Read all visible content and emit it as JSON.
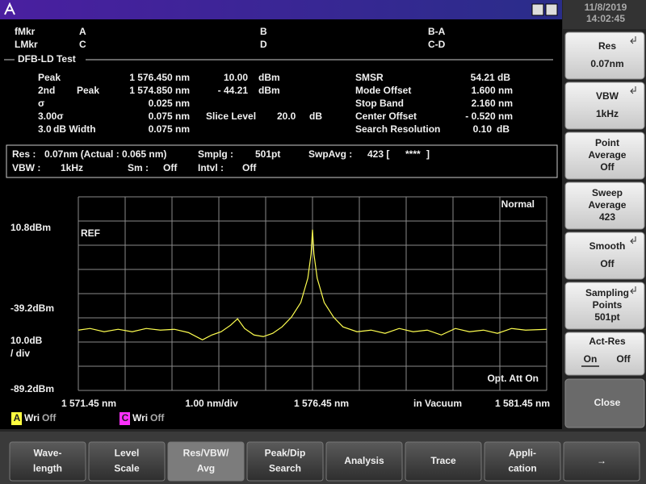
{
  "title_bar": {
    "date": "11/8/2019",
    "time": "14:02:45"
  },
  "markers": {
    "row1": [
      "fMkr",
      "A",
      "B",
      "B-A"
    ],
    "row2": [
      "LMkr",
      "C",
      "D",
      "C-D"
    ]
  },
  "test_name": "DFB-LD Test",
  "results": [
    [
      "Peak",
      "1 576.450 nm",
      "10.00",
      "dBm",
      "SMSR",
      "54.21 dB"
    ],
    [
      "2nd",
      "Peak",
      "1 574.850 nm",
      "- 44.21",
      "dBm",
      "Mode Offset",
      "1.600 nm"
    ],
    [
      "σ",
      "0.025 nm",
      "Stop Band",
      "2.160 nm"
    ],
    [
      "3.00σ",
      "0.075 nm",
      "Slice Level",
      "20.0",
      "dB",
      "Center Offset",
      "- 0.520 nm"
    ],
    [
      "3.0",
      "dB Width",
      "0.075 nm",
      "Search Resolution",
      "0.10",
      "dB"
    ]
  ],
  "settings": [
    [
      "Res :",
      "0.07nm (Actual :  0.065 nm)",
      "Smplg :",
      "501pt",
      "SwpAvg :",
      "423 [",
      "****",
      "]"
    ],
    [
      "VBW :",
      "1kHz",
      "Sm :",
      "Off",
      "Intvl :",
      "Off"
    ]
  ],
  "graph": {
    "mode": "Normal",
    "ref": "REF",
    "level_top": "10.8dBm",
    "level_mid": "-39.2dBm",
    "scale": "10.0dB",
    "scale_unit": "/ div",
    "level_bottom": "-89.2dBm",
    "att": "Opt. Att On",
    "x_labels": [
      "1 571.45 nm",
      "1.00 nm/div",
      "1 576.45 nm",
      "in Vacuum",
      "1 581.45 nm"
    ]
  },
  "trace_legend": [
    [
      "A",
      "Wri",
      "Off"
    ],
    [
      "C",
      "Wri",
      "Off"
    ]
  ],
  "trace": {
    "color": "#ffff50",
    "xlim": [
      1571.45,
      1581.45
    ],
    "ylim": [
      -89.2,
      30.2
    ],
    "x": [
      1571.45,
      1571.7,
      1572.0,
      1572.3,
      1572.6,
      1572.9,
      1573.2,
      1573.5,
      1573.8,
      1574.1,
      1574.3,
      1574.5,
      1574.7,
      1574.85,
      1575.0,
      1575.2,
      1575.4,
      1575.6,
      1575.8,
      1576.0,
      1576.2,
      1576.35,
      1576.42,
      1576.45,
      1576.48,
      1576.55,
      1576.7,
      1576.9,
      1577.1,
      1577.4,
      1577.7,
      1578.0,
      1578.3,
      1578.6,
      1578.9,
      1579.2,
      1579.5,
      1579.8,
      1580.1,
      1580.4,
      1580.7,
      1581.0,
      1581.45
    ],
    "values": [
      -52,
      -51,
      -53,
      -51.5,
      -53,
      -51,
      -52,
      -51.5,
      -53.5,
      -58,
      -55,
      -53,
      -49,
      -45,
      -51,
      -55,
      -56,
      -54,
      -50,
      -44,
      -35,
      -20,
      -5,
      10,
      -5,
      -20,
      -35,
      -44,
      -50,
      -53,
      -52,
      -54,
      -51,
      -53,
      -52,
      -55,
      -51,
      -53,
      -52,
      -54,
      -51,
      -52,
      -51.5
    ]
  },
  "side_keys": [
    [
      "Res",
      "0.07nm"
    ],
    [
      "VBW",
      "1kHz"
    ],
    [
      "Point",
      "Average",
      "Off"
    ],
    [
      "Sweep",
      "Average",
      "423"
    ],
    [
      "Smooth",
      "Off"
    ],
    [
      "Sampling",
      "Points",
      "501pt"
    ],
    [
      "Act-Res",
      "On",
      "Off"
    ],
    [
      "Close"
    ]
  ],
  "function_keys": [
    [
      "Wave-",
      "length"
    ],
    [
      "Level",
      "Scale"
    ],
    [
      "Res/VBW/",
      "Avg"
    ],
    [
      "Peak/Dip",
      "Search"
    ],
    [
      "Analysis"
    ],
    [
      "Trace"
    ],
    [
      "Appli-",
      "cation"
    ],
    [
      "→"
    ]
  ]
}
